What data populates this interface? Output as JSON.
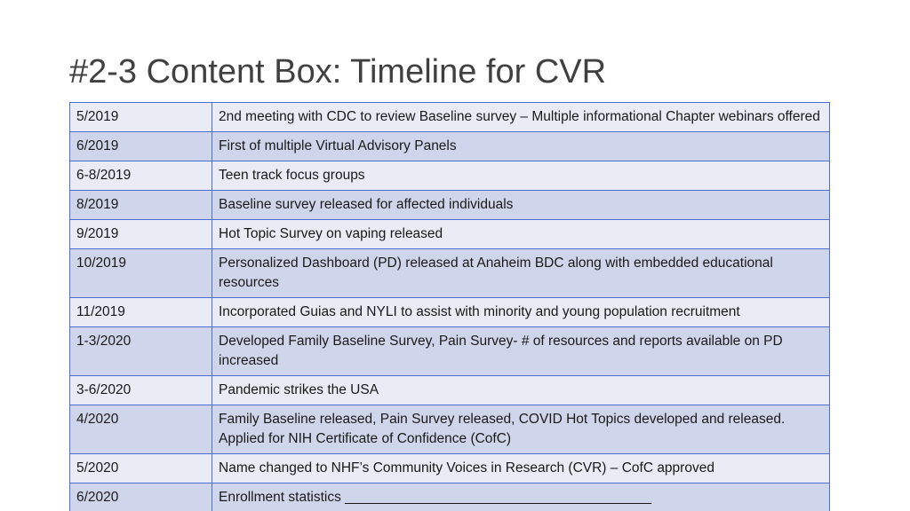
{
  "title": "#2-3 Content Box: Timeline for CVR",
  "table": {
    "rows": [
      [
        "5/2019",
        "2nd meeting with CDC to review Baseline survey – Multiple informational Chapter webinars offered"
      ],
      [
        "6/2019",
        "First of multiple Virtual Advisory Panels"
      ],
      [
        "6-8/2019",
        "Teen track focus groups"
      ],
      [
        "8/2019",
        "Baseline survey released for affected individuals"
      ],
      [
        "9/2019",
        "Hot Topic Survey on vaping released"
      ],
      [
        "10/2019",
        "Personalized Dashboard (PD) released at Anaheim BDC along with embedded educational resources"
      ],
      [
        "11/2019",
        "Incorporated Guias and NYLI to assist with minority and young population recruitment"
      ],
      [
        "1-3/2020",
        "Developed Family Baseline Survey, Pain Survey- # of resources and reports available on PD increased"
      ],
      [
        "3-6/2020",
        "Pandemic strikes the USA"
      ],
      [
        "4/2020",
        "Family Baseline released, Pain Survey released, COVID Hot Topics developed and released. Applied for NIH Certificate of Confidence (CofC)"
      ],
      [
        "5/2020",
        "Name changed to NHF’s Community Voices in Research (CVR) – CofC approved"
      ],
      [
        "6/2020",
        "Enrollment statistics ________________________________________"
      ]
    ]
  }
}
